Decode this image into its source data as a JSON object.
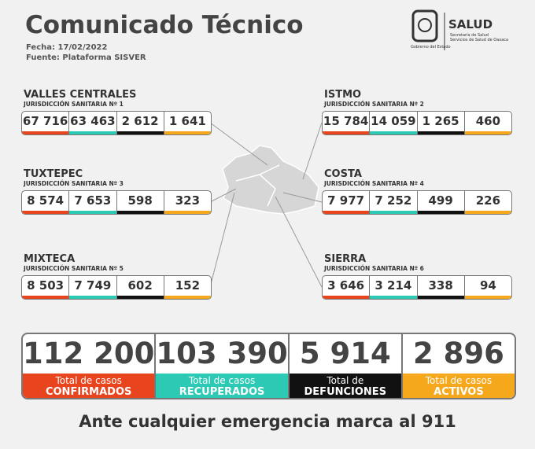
{
  "header": {
    "title": "Comunicado Técnico",
    "date": "Fecha: 17/02/2022",
    "source": "Fuente: Plataforma SISVER"
  },
  "logo": {
    "brand": "SALUD",
    "line1": "Secretaría de Salud",
    "line2": "Servicios de Salud de Oaxaca",
    "government": "Gobierno del Estado"
  },
  "regions": [
    {
      "name": "VALLES CENTRALES",
      "jurisdiction": "JURISDICCIÓN SANITARIA Nº 1",
      "values": [
        "67 716",
        "63 463",
        "2 612",
        "1 641"
      ]
    },
    {
      "name": "ISTMO",
      "jurisdiction": "JURISDICCIÓN SANITARIA Nº 2",
      "values": [
        "15 784",
        "14 059",
        "1 265",
        "460"
      ]
    },
    {
      "name": "TUXTEPEC",
      "jurisdiction": "JURISDICCIÓN SANITARIA Nº 3",
      "values": [
        "8 574",
        "7 653",
        "598",
        "323"
      ]
    },
    {
      "name": "COSTA",
      "jurisdiction": "JURISDICCIÓN SANITARIA Nº 4",
      "values": [
        "7 977",
        "7 252",
        "499",
        "226"
      ]
    },
    {
      "name": "MIXTECA",
      "jurisdiction": "JURISDICCIÓN SANITARIA Nº 5",
      "values": [
        "8 503",
        "7 749",
        "602",
        "152"
      ]
    },
    {
      "name": "SIERRA",
      "jurisdiction": "JURISDICCIÓN SANITARIA Nº 6",
      "values": [
        "3 646",
        "3 214",
        "338",
        "94"
      ]
    }
  ],
  "totals": [
    {
      "value": "112 200",
      "label_top": "Total de casos",
      "label_bottom": "CONFIRMADOS"
    },
    {
      "value": "103 390",
      "label_top": "Total de casos",
      "label_bottom": "RECUPERADOS"
    },
    {
      "value": "5 914",
      "label_top": "Total de",
      "label_bottom": "DEFUNCIONES"
    },
    {
      "value": "2 896",
      "label_top": "Total de casos",
      "label_bottom": "ACTIVOS"
    }
  ],
  "footer": "Ante cualquier emergencia marca al 911"
}
